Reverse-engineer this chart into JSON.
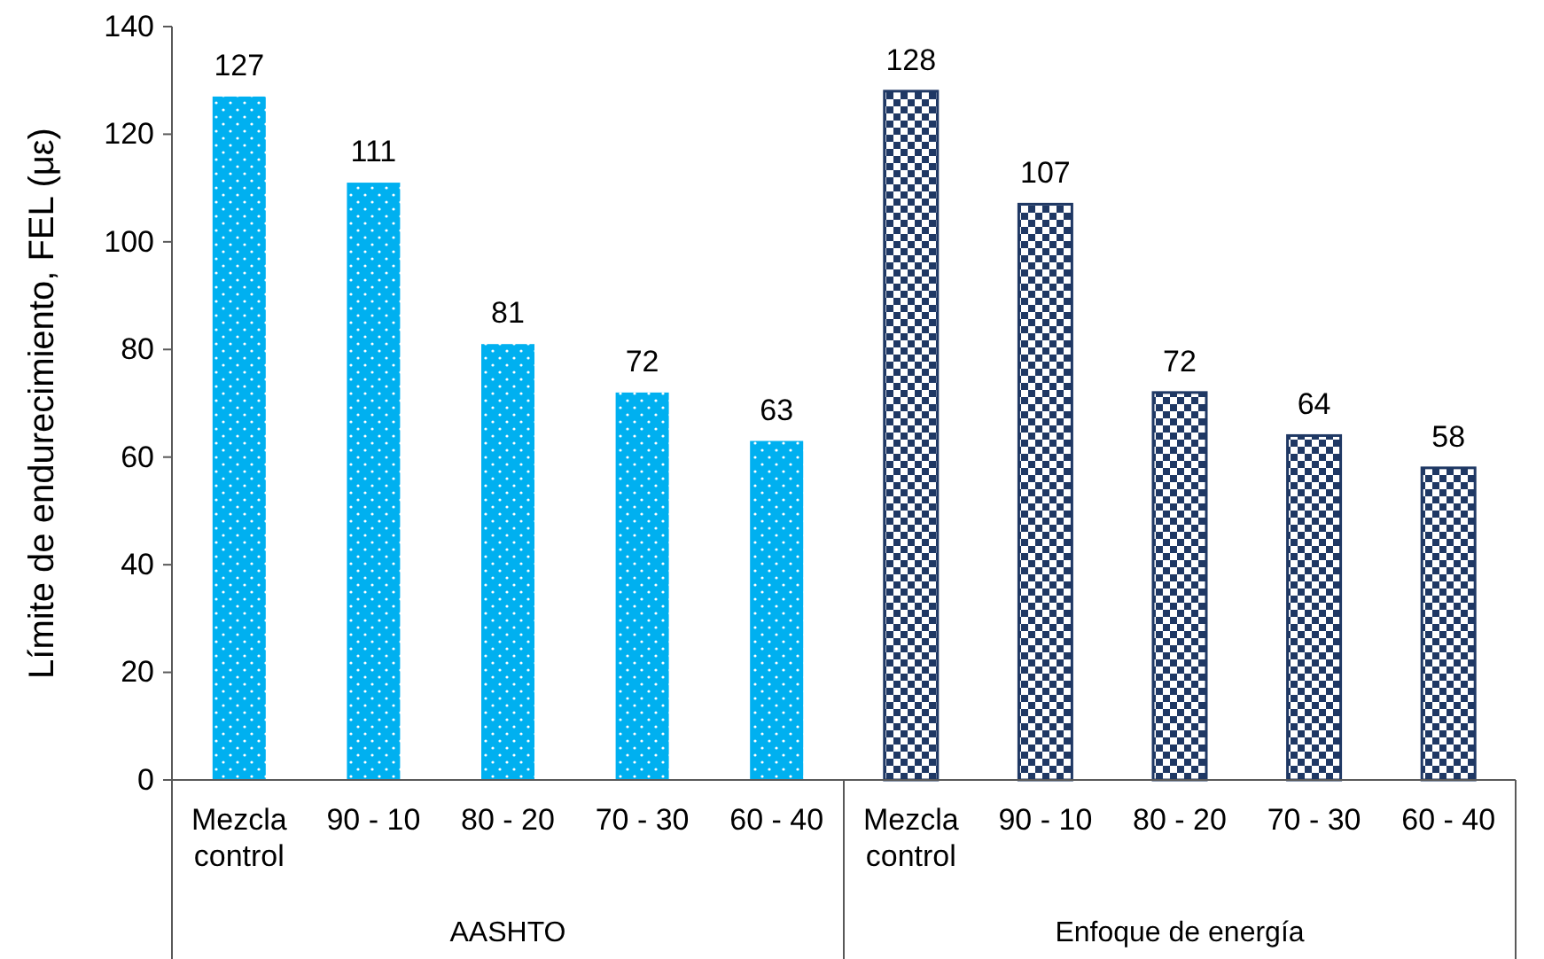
{
  "chart_data": {
    "type": "bar",
    "ylabel": "Límite de endurecimiento, FEL (με)",
    "categories": [
      "Mezcla control",
      "90 - 10",
      "80 - 20",
      "70 - 30",
      "60 - 40",
      "Mezcla control",
      "90 - 10",
      "80 - 20",
      "70 - 30",
      "60 - 40"
    ],
    "series": [
      {
        "color": "#00b0f0",
        "values": [
          127,
          111,
          81,
          72,
          63,
          null,
          null,
          null,
          null,
          null
        ]
      },
      {
        "color": "#1f3864",
        "values": [
          null,
          null,
          null,
          null,
          null,
          128,
          107,
          72,
          64,
          58
        ]
      }
    ],
    "ylim": [
      0,
      140
    ],
    "yticks": [
      0,
      20,
      40,
      60,
      80,
      100,
      120,
      140
    ],
    "data_labels": true,
    "grid": false,
    "annotations": [
      "AASHTO",
      "Enfoque de energía"
    ]
  }
}
